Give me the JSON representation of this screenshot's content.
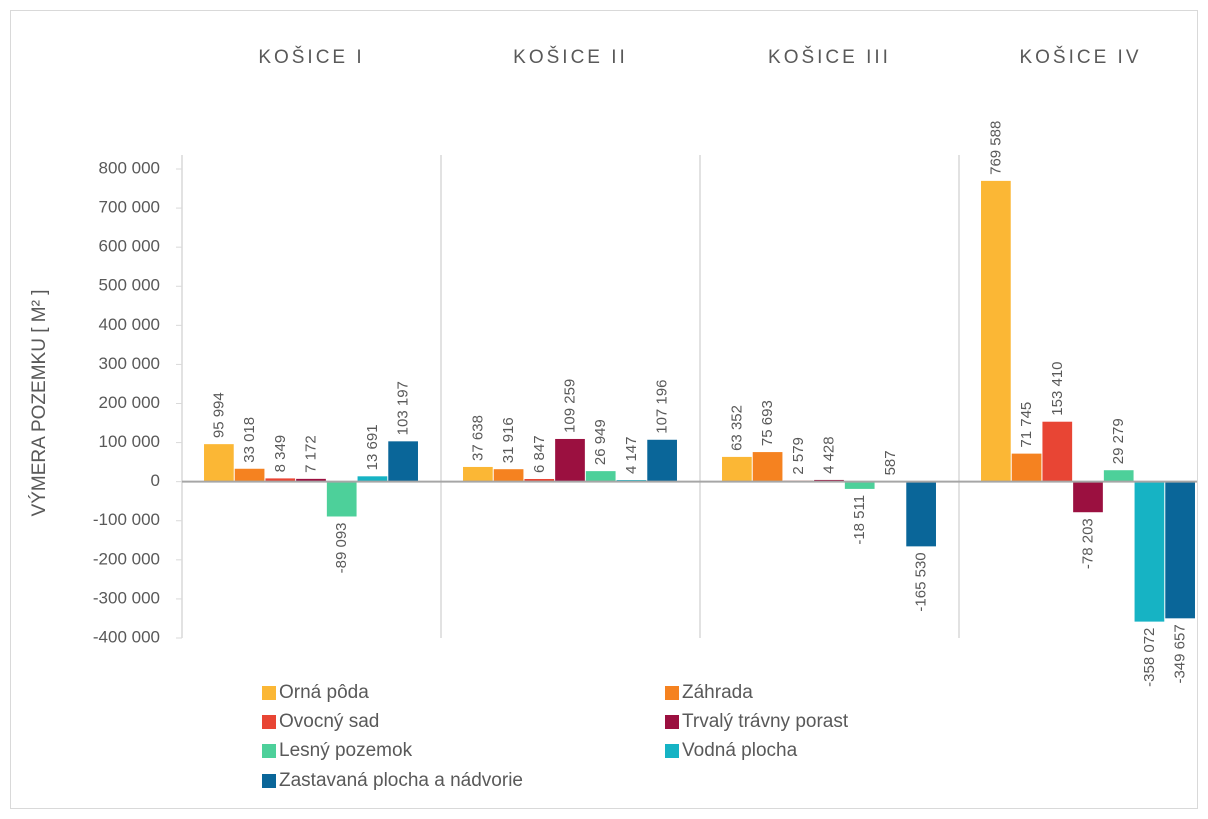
{
  "chart_data": {
    "type": "bar",
    "y_label": "VÝMERA POZEMKU [ M² ]",
    "categories": [
      "KOŠICE I",
      "KOŠICE II",
      "KOŠICE III",
      "KOŠICE IV"
    ],
    "ylim": [
      -400000,
      800000
    ],
    "yticks": [
      {
        "value": -400000,
        "label": "-400 000"
      },
      {
        "value": -300000,
        "label": "-300 000"
      },
      {
        "value": -200000,
        "label": "-200 000"
      },
      {
        "value": -100000,
        "label": "-100 000"
      },
      0,
      {
        "value": 100000,
        "label": "100 000"
      },
      {
        "value": 200000,
        "label": "200 000"
      },
      {
        "value": 300000,
        "label": "300 000"
      },
      {
        "value": 400000,
        "label": "400 000"
      },
      {
        "value": 500000,
        "label": "500 000"
      },
      {
        "value": 600000,
        "label": "600 000"
      },
      {
        "value": 700000,
        "label": "700 000"
      },
      {
        "value": 800000,
        "label": "800 000"
      }
    ],
    "legend": "bottom",
    "series": [
      {
        "name": "Orná pôda",
        "color": "#fbb735",
        "values": [
          95994,
          37638,
          63352,
          769588
        ],
        "value_labels": [
          "95 994",
          "37 638",
          "63 352",
          "769 588"
        ]
      },
      {
        "name": "Záhrada",
        "color": "#f58220",
        "values": [
          33018,
          31916,
          75693,
          71745
        ],
        "value_labels": [
          "33 018",
          "31 916",
          "75 693",
          "71 745"
        ]
      },
      {
        "name": "Ovocný sad",
        "color": "#e84534",
        "values": [
          8349,
          6847,
          2579,
          153410
        ],
        "value_labels": [
          "8 349",
          "6 847",
          "2 579",
          "153 410"
        ]
      },
      {
        "name": "Trvalý trávny porast",
        "color": "#9b1040",
        "values": [
          7172,
          109259,
          4428,
          -78203
        ],
        "value_labels": [
          "7 172",
          "109 259",
          "4 428",
          "-78 203"
        ]
      },
      {
        "name": "Lesný pozemok",
        "color": "#4dd09a",
        "values": [
          -89093,
          26949,
          -18511,
          29279
        ],
        "value_labels": [
          "-89 093",
          "26 949",
          "-18 511",
          "29 279"
        ]
      },
      {
        "name": "Vodná plocha",
        "color": "#16b3c4",
        "values": [
          13691,
          4147,
          587,
          -358072
        ],
        "value_labels": [
          "13 691",
          "4 147",
          "587",
          "-358 072"
        ]
      },
      {
        "name": "Zastavaná plocha a nádvorie",
        "color": "#0a6699",
        "values": [
          103197,
          107196,
          -165530,
          -349657
        ],
        "value_labels": [
          "103 197",
          "107 196",
          "-165 530",
          "-349 657"
        ]
      }
    ]
  }
}
